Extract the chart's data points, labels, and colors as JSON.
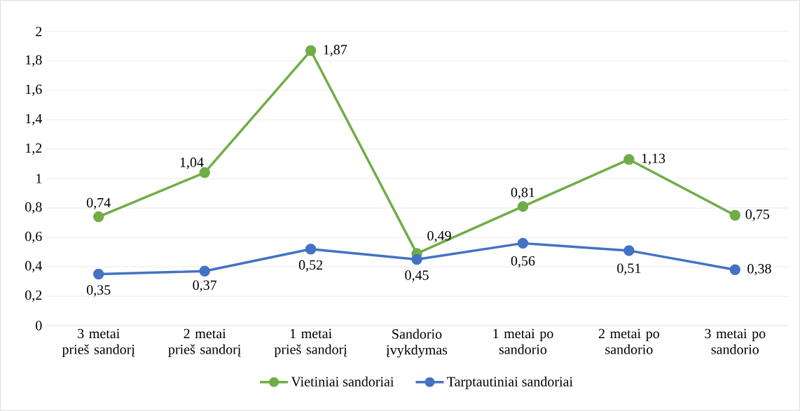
{
  "chart_data": {
    "type": "line",
    "categories": [
      "3 metai prieš sandorį",
      "2 metai prieš sandorį",
      "1 metai prieš sandorį",
      "Sandorio įvykdymas",
      "1 metai po sandorio",
      "2 metai po sandorio",
      "3 metai po sandorio"
    ],
    "series": [
      {
        "name": "Vietiniai sandoriai",
        "color": "#70ad47",
        "values": [
          0.74,
          1.04,
          1.87,
          0.49,
          0.81,
          1.13,
          0.75
        ],
        "value_labels": [
          "0,74",
          "1,04",
          "1,87",
          "0,49",
          "0,81",
          "1,13",
          "0,75"
        ]
      },
      {
        "name": "Tarptautiniai sandoriai",
        "color": "#4472c4",
        "values": [
          0.35,
          0.37,
          0.52,
          0.45,
          0.56,
          0.51,
          0.38
        ],
        "value_labels": [
          "0,35",
          "0,37",
          "0,52",
          "0,45",
          "0,56",
          "0,51",
          "0,38"
        ]
      }
    ],
    "ylim": [
      0,
      2
    ],
    "yticks": [
      0,
      {
        "value": 0.2,
        "label": "0,2"
      },
      {
        "value": 0.4,
        "label": "0,4"
      },
      {
        "value": 0.6,
        "label": "0,6"
      },
      {
        "value": 0.8,
        "label": "0,8"
      },
      1,
      {
        "value": 1.2,
        "label": "1,2"
      },
      {
        "value": 1.4,
        "label": "1,4"
      },
      {
        "value": 1.6,
        "label": "1,6"
      },
      {
        "value": 1.8,
        "label": "1,8"
      },
      2
    ],
    "grid": "y",
    "legend": "bottom",
    "marker": "circle",
    "line_style": "solid"
  }
}
